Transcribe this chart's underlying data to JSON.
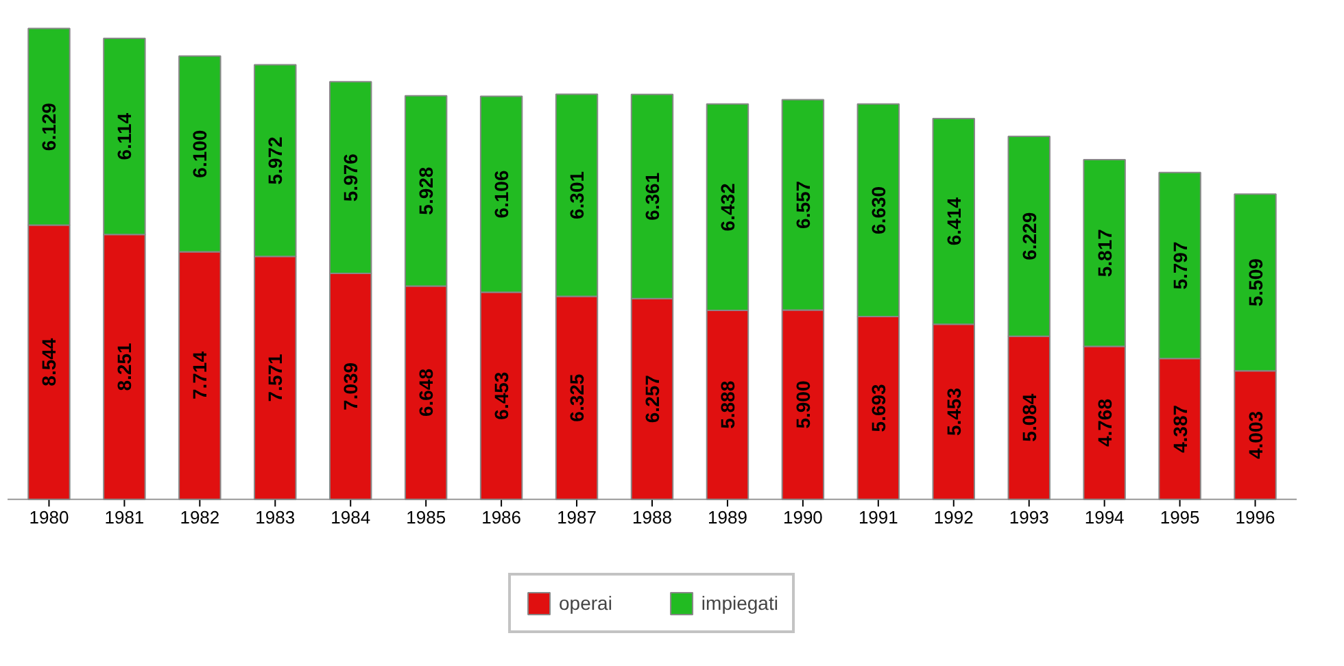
{
  "chart_data": {
    "type": "bar",
    "stacked": true,
    "categories": [
      "1980",
      "1981",
      "1982",
      "1983",
      "1984",
      "1985",
      "1986",
      "1987",
      "1988",
      "1989",
      "1990",
      "1991",
      "1992",
      "1993",
      "1994",
      "1995",
      "1996"
    ],
    "series": [
      {
        "name": "operai",
        "color": "#e01010",
        "values": [
          8544,
          8251,
          7714,
          7571,
          7039,
          6648,
          6453,
          6325,
          6257,
          5888,
          5900,
          5693,
          5453,
          5084,
          4768,
          4387,
          4003
        ],
        "value_labels": [
          "8.544",
          "8.251",
          "7.714",
          "7.571",
          "7.039",
          "6.648",
          "6.453",
          "6.325",
          "6.257",
          "5.888",
          "5.900",
          "5.693",
          "5.453",
          "5.084",
          "4.768",
          "4.387",
          "4.003"
        ]
      },
      {
        "name": "impiegati",
        "color": "#22bb22",
        "values": [
          6129,
          6114,
          6100,
          5972,
          5976,
          5928,
          6106,
          6301,
          6361,
          6432,
          6557,
          6630,
          6414,
          6229,
          5817,
          5797,
          5509
        ],
        "value_labels": [
          "6.129",
          "6.114",
          "6.100",
          "5.972",
          "5.976",
          "5.928",
          "6.106",
          "6.301",
          "6.361",
          "6.432",
          "6.557",
          "6.630",
          "6.414",
          "6.229",
          "5.817",
          "5.797",
          "5.509"
        ]
      }
    ],
    "legend": "bottom",
    "grid": false,
    "tick_labels": "x"
  }
}
